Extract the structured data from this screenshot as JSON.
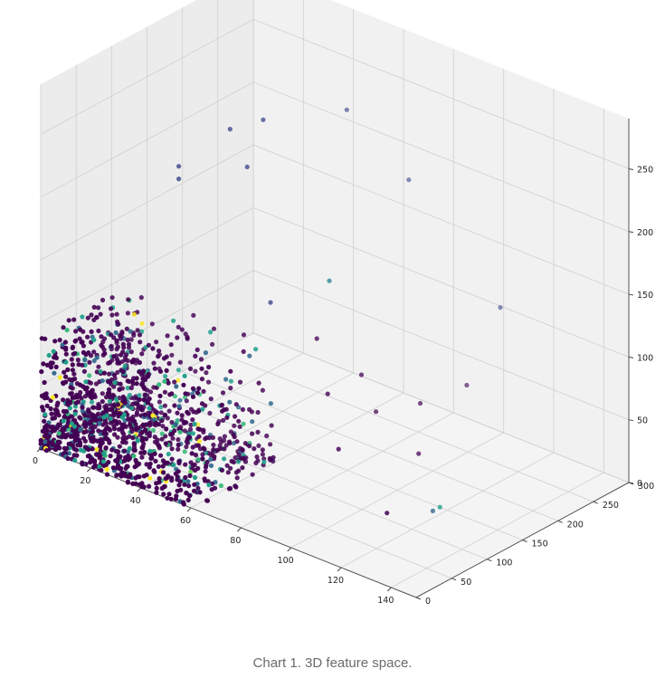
{
  "caption": "Chart 1. 3D feature space.",
  "chart_data": {
    "type": "scatter",
    "projection": "3d",
    "grid": true,
    "colormap": "viridis",
    "pane_color": "#f2f2f2",
    "grid_color": "#cfcfcf",
    "x_axis": {
      "range": [
        0,
        150
      ],
      "ticks": [
        0,
        20,
        40,
        60,
        80,
        100,
        120,
        140
      ]
    },
    "y_axis": {
      "range": [
        0,
        300
      ],
      "ticks": [
        0,
        50,
        100,
        150,
        200,
        250,
        300
      ]
    },
    "z_axis": {
      "range": [
        0,
        290
      ],
      "ticks": [
        0,
        50,
        100,
        150,
        200,
        250
      ]
    },
    "outlier_points": [
      {
        "x": 24,
        "y": 110,
        "z": 210,
        "c": 0.25
      },
      {
        "x": 24,
        "y": 110,
        "z": 200,
        "c": 0.25
      },
      {
        "x": 36,
        "y": 140,
        "z": 240,
        "c": 0.2
      },
      {
        "x": 40,
        "y": 150,
        "z": 210,
        "c": 0.2
      },
      {
        "x": 45,
        "y": 155,
        "z": 250,
        "c": 0.2
      },
      {
        "x": 70,
        "y": 160,
        "z": 140,
        "c": 0.45
      },
      {
        "x": 60,
        "y": 220,
        "z": 250,
        "c": 0.2
      },
      {
        "x": 72,
        "y": 265,
        "z": 190,
        "c": 0.2
      },
      {
        "x": 110,
        "y": 260,
        "z": 120,
        "c": 0.2
      },
      {
        "x": 98,
        "y": 255,
        "z": 50,
        "c": 0.0
      },
      {
        "x": 95,
        "y": 200,
        "z": 50,
        "c": 0.0
      },
      {
        "x": 83,
        "y": 180,
        "z": 40,
        "c": 0.0
      },
      {
        "x": 100,
        "y": 180,
        "z": 20,
        "c": 0.0
      },
      {
        "x": 110,
        "y": 100,
        "z": 5,
        "c": 0.0
      },
      {
        "x": 117,
        "y": 150,
        "z": 0,
        "c": 0.55
      },
      {
        "x": 117,
        "y": 140,
        "z": 0,
        "c": 0.35
      },
      {
        "x": 85,
        "y": 120,
        "z": 30,
        "c": 0.0
      },
      {
        "x": 60,
        "y": 30,
        "z": 10,
        "c": 0.0
      },
      {
        "x": 50,
        "y": 35,
        "z": 10,
        "c": 0.75
      },
      {
        "x": 33,
        "y": 10,
        "z": 0,
        "c": 1.0
      },
      {
        "x": 38,
        "y": 20,
        "z": 0,
        "c": 1.0
      },
      {
        "x": 43,
        "y": 25,
        "z": 0,
        "c": 1.0
      },
      {
        "x": 68,
        "y": 75,
        "z": 20,
        "c": 0.5
      },
      {
        "x": 60,
        "y": 60,
        "z": 40,
        "c": 0.0
      },
      {
        "x": 75,
        "y": 140,
        "z": 60,
        "c": 0.0
      },
      {
        "x": 65,
        "y": 160,
        "z": 90,
        "c": 0.0
      },
      {
        "x": 80,
        "y": 170,
        "z": 70,
        "c": 0.0
      },
      {
        "x": 55,
        "y": 130,
        "z": 120,
        "c": 0.2
      }
    ]
  }
}
